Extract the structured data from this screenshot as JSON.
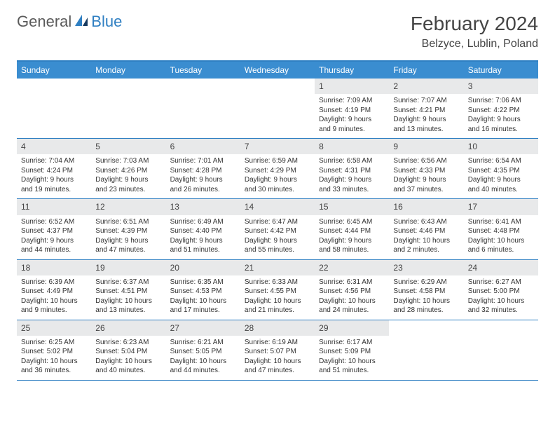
{
  "logo": {
    "part1": "General",
    "part2": "Blue"
  },
  "title": "February 2024",
  "location": "Belzyce, Lublin, Poland",
  "colors": {
    "header_bar": "#3a8dd0",
    "rule": "#2f7fc2",
    "daynum_bg": "#e8e9ea",
    "logo_gray": "#5a5a5a",
    "logo_blue": "#2f7fc2"
  },
  "day_names": [
    "Sunday",
    "Monday",
    "Tuesday",
    "Wednesday",
    "Thursday",
    "Friday",
    "Saturday"
  ],
  "weeks": [
    [
      {
        "n": "",
        "sr": "",
        "ss": "",
        "dl": ""
      },
      {
        "n": "",
        "sr": "",
        "ss": "",
        "dl": ""
      },
      {
        "n": "",
        "sr": "",
        "ss": "",
        "dl": ""
      },
      {
        "n": "",
        "sr": "",
        "ss": "",
        "dl": ""
      },
      {
        "n": "1",
        "sr": "Sunrise: 7:09 AM",
        "ss": "Sunset: 4:19 PM",
        "dl": "Daylight: 9 hours and 9 minutes."
      },
      {
        "n": "2",
        "sr": "Sunrise: 7:07 AM",
        "ss": "Sunset: 4:21 PM",
        "dl": "Daylight: 9 hours and 13 minutes."
      },
      {
        "n": "3",
        "sr": "Sunrise: 7:06 AM",
        "ss": "Sunset: 4:22 PM",
        "dl": "Daylight: 9 hours and 16 minutes."
      }
    ],
    [
      {
        "n": "4",
        "sr": "Sunrise: 7:04 AM",
        "ss": "Sunset: 4:24 PM",
        "dl": "Daylight: 9 hours and 19 minutes."
      },
      {
        "n": "5",
        "sr": "Sunrise: 7:03 AM",
        "ss": "Sunset: 4:26 PM",
        "dl": "Daylight: 9 hours and 23 minutes."
      },
      {
        "n": "6",
        "sr": "Sunrise: 7:01 AM",
        "ss": "Sunset: 4:28 PM",
        "dl": "Daylight: 9 hours and 26 minutes."
      },
      {
        "n": "7",
        "sr": "Sunrise: 6:59 AM",
        "ss": "Sunset: 4:29 PM",
        "dl": "Daylight: 9 hours and 30 minutes."
      },
      {
        "n": "8",
        "sr": "Sunrise: 6:58 AM",
        "ss": "Sunset: 4:31 PM",
        "dl": "Daylight: 9 hours and 33 minutes."
      },
      {
        "n": "9",
        "sr": "Sunrise: 6:56 AM",
        "ss": "Sunset: 4:33 PM",
        "dl": "Daylight: 9 hours and 37 minutes."
      },
      {
        "n": "10",
        "sr": "Sunrise: 6:54 AM",
        "ss": "Sunset: 4:35 PM",
        "dl": "Daylight: 9 hours and 40 minutes."
      }
    ],
    [
      {
        "n": "11",
        "sr": "Sunrise: 6:52 AM",
        "ss": "Sunset: 4:37 PM",
        "dl": "Daylight: 9 hours and 44 minutes."
      },
      {
        "n": "12",
        "sr": "Sunrise: 6:51 AM",
        "ss": "Sunset: 4:39 PM",
        "dl": "Daylight: 9 hours and 47 minutes."
      },
      {
        "n": "13",
        "sr": "Sunrise: 6:49 AM",
        "ss": "Sunset: 4:40 PM",
        "dl": "Daylight: 9 hours and 51 minutes."
      },
      {
        "n": "14",
        "sr": "Sunrise: 6:47 AM",
        "ss": "Sunset: 4:42 PM",
        "dl": "Daylight: 9 hours and 55 minutes."
      },
      {
        "n": "15",
        "sr": "Sunrise: 6:45 AM",
        "ss": "Sunset: 4:44 PM",
        "dl": "Daylight: 9 hours and 58 minutes."
      },
      {
        "n": "16",
        "sr": "Sunrise: 6:43 AM",
        "ss": "Sunset: 4:46 PM",
        "dl": "Daylight: 10 hours and 2 minutes."
      },
      {
        "n": "17",
        "sr": "Sunrise: 6:41 AM",
        "ss": "Sunset: 4:48 PM",
        "dl": "Daylight: 10 hours and 6 minutes."
      }
    ],
    [
      {
        "n": "18",
        "sr": "Sunrise: 6:39 AM",
        "ss": "Sunset: 4:49 PM",
        "dl": "Daylight: 10 hours and 9 minutes."
      },
      {
        "n": "19",
        "sr": "Sunrise: 6:37 AM",
        "ss": "Sunset: 4:51 PM",
        "dl": "Daylight: 10 hours and 13 minutes."
      },
      {
        "n": "20",
        "sr": "Sunrise: 6:35 AM",
        "ss": "Sunset: 4:53 PM",
        "dl": "Daylight: 10 hours and 17 minutes."
      },
      {
        "n": "21",
        "sr": "Sunrise: 6:33 AM",
        "ss": "Sunset: 4:55 PM",
        "dl": "Daylight: 10 hours and 21 minutes."
      },
      {
        "n": "22",
        "sr": "Sunrise: 6:31 AM",
        "ss": "Sunset: 4:56 PM",
        "dl": "Daylight: 10 hours and 24 minutes."
      },
      {
        "n": "23",
        "sr": "Sunrise: 6:29 AM",
        "ss": "Sunset: 4:58 PM",
        "dl": "Daylight: 10 hours and 28 minutes."
      },
      {
        "n": "24",
        "sr": "Sunrise: 6:27 AM",
        "ss": "Sunset: 5:00 PM",
        "dl": "Daylight: 10 hours and 32 minutes."
      }
    ],
    [
      {
        "n": "25",
        "sr": "Sunrise: 6:25 AM",
        "ss": "Sunset: 5:02 PM",
        "dl": "Daylight: 10 hours and 36 minutes."
      },
      {
        "n": "26",
        "sr": "Sunrise: 6:23 AM",
        "ss": "Sunset: 5:04 PM",
        "dl": "Daylight: 10 hours and 40 minutes."
      },
      {
        "n": "27",
        "sr": "Sunrise: 6:21 AM",
        "ss": "Sunset: 5:05 PM",
        "dl": "Daylight: 10 hours and 44 minutes."
      },
      {
        "n": "28",
        "sr": "Sunrise: 6:19 AM",
        "ss": "Sunset: 5:07 PM",
        "dl": "Daylight: 10 hours and 47 minutes."
      },
      {
        "n": "29",
        "sr": "Sunrise: 6:17 AM",
        "ss": "Sunset: 5:09 PM",
        "dl": "Daylight: 10 hours and 51 minutes."
      },
      {
        "n": "",
        "sr": "",
        "ss": "",
        "dl": ""
      },
      {
        "n": "",
        "sr": "",
        "ss": "",
        "dl": ""
      }
    ]
  ]
}
